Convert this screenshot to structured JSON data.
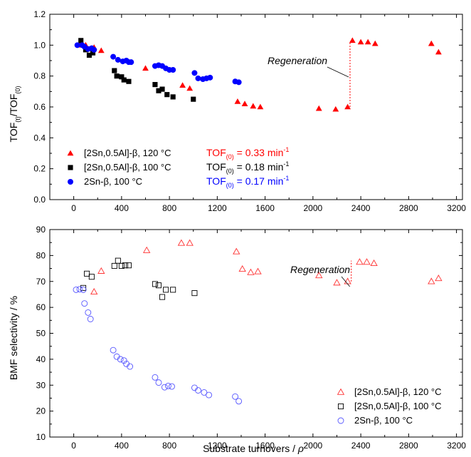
{
  "chart_data": [
    {
      "type": "scatter",
      "title": "",
      "xlabel": "",
      "ylabel": {
        "main": "TOF",
        "sub1": "(t)",
        "mid": "/TOF",
        "sub2": "(0)"
      },
      "xlim": [
        -200,
        3250
      ],
      "ylim": [
        0.0,
        1.2
      ],
      "xticks": [
        "0",
        "400",
        "800",
        "1200",
        "1600",
        "2000",
        "2400",
        "2800",
        "3200"
      ],
      "yticks": [
        "0.0",
        "0.2",
        "0.4",
        "0.6",
        "0.8",
        "1.0",
        "1.2"
      ],
      "grid": false,
      "legend_placement": "bottom-left",
      "series": [
        {
          "name": "[2Sn,0.5Al]-β, 120 °C",
          "marker": "triangle",
          "filled": true,
          "color": "#ff0000",
          "points": [
            [
              50,
              1.0
            ],
            [
              100,
              1.0
            ],
            [
              170,
              0.985
            ],
            [
              230,
              0.965
            ],
            [
              600,
              0.85
            ],
            [
              910,
              0.74
            ],
            [
              970,
              0.72
            ],
            [
              1370,
              0.635
            ],
            [
              1430,
              0.62
            ],
            [
              1500,
              0.605
            ],
            [
              1560,
              0.6
            ],
            [
              2050,
              0.59
            ],
            [
              2190,
              0.585
            ],
            [
              2290,
              0.6
            ],
            [
              2330,
              1.03
            ],
            [
              2400,
              1.02
            ],
            [
              2460,
              1.02
            ],
            [
              2520,
              1.01
            ],
            [
              2990,
              1.01
            ],
            [
              3050,
              0.955
            ]
          ]
        },
        {
          "name": "[2Sn,0.5Al]-β, 100 °C",
          "marker": "square",
          "filled": true,
          "color": "#000000",
          "points": [
            [
              60,
              1.03
            ],
            [
              100,
              0.97
            ],
            [
              130,
              0.935
            ],
            [
              160,
              0.95
            ],
            [
              340,
              0.835
            ],
            [
              360,
              0.8
            ],
            [
              400,
              0.795
            ],
            [
              420,
              0.775
            ],
            [
              460,
              0.765
            ],
            [
              680,
              0.745
            ],
            [
              710,
              0.705
            ],
            [
              740,
              0.715
            ],
            [
              780,
              0.68
            ],
            [
              830,
              0.665
            ],
            [
              1000,
              0.65
            ]
          ]
        },
        {
          "name": "2Sn-β, 100 °C",
          "marker": "circle",
          "filled": true,
          "color": "#0000ff",
          "points": [
            [
              30,
              1.0
            ],
            [
              70,
              1.0
            ],
            [
              90,
              0.99
            ],
            [
              120,
              0.975
            ],
            [
              150,
              0.98
            ],
            [
              170,
              0.97
            ],
            [
              330,
              0.925
            ],
            [
              370,
              0.905
            ],
            [
              410,
              0.895
            ],
            [
              440,
              0.9
            ],
            [
              460,
              0.89
            ],
            [
              480,
              0.89
            ],
            [
              680,
              0.865
            ],
            [
              710,
              0.87
            ],
            [
              740,
              0.865
            ],
            [
              770,
              0.85
            ],
            [
              800,
              0.84
            ],
            [
              830,
              0.84
            ],
            [
              1010,
              0.82
            ],
            [
              1040,
              0.785
            ],
            [
              1080,
              0.78
            ],
            [
              1110,
              0.785
            ],
            [
              1140,
              0.79
            ],
            [
              1350,
              0.765
            ],
            [
              1380,
              0.76
            ]
          ]
        }
      ],
      "tof_labels": [
        {
          "main": "TOF",
          "sub": "(0)",
          "value": " = 0.33 min",
          "sup": "-1",
          "color": "#ff0000"
        },
        {
          "main": "TOF",
          "sub": "(0)",
          "value": " = 0.18 min",
          "sup": "-1",
          "color": "#000000"
        },
        {
          "main": "TOF",
          "sub": "(0)",
          "value": " = 0.17 min",
          "sup": "-1",
          "color": "#0000ff"
        }
      ],
      "annotation": {
        "text": "Regeneration",
        "x": 2310,
        "y_from": 0.6,
        "y_to": 1.02
      }
    },
    {
      "type": "scatter",
      "title": "",
      "xlabel": {
        "main": "Substrate turnovers / ",
        "italic": "ρ"
      },
      "ylabel": "BMF selectivity / %",
      "xlim": [
        -200,
        3250
      ],
      "ylim": [
        10,
        90
      ],
      "xticks": [
        "0",
        "400",
        "800",
        "1200",
        "1600",
        "2000",
        "2400",
        "2800",
        "3200"
      ],
      "yticks": [
        "10",
        "20",
        "30",
        "40",
        "50",
        "60",
        "70",
        "80",
        "90"
      ],
      "grid": false,
      "legend_placement": "bottom-right",
      "series": [
        {
          "name": "[2Sn,0.5Al]-β, 120 °C",
          "marker": "triangle",
          "filled": false,
          "color": "#ff3333",
          "points": [
            [
              170,
              66
            ],
            [
              230,
              74
            ],
            [
              610,
              82
            ],
            [
              900,
              84.8
            ],
            [
              970,
              84.8
            ],
            [
              1360,
              81.5
            ],
            [
              1410,
              74.8
            ],
            [
              1480,
              73.5
            ],
            [
              1540,
              73.8
            ],
            [
              2050,
              72.3
            ],
            [
              2200,
              69.5
            ],
            [
              2290,
              70
            ],
            [
              2390,
              77.5
            ],
            [
              2450,
              77.5
            ],
            [
              2510,
              77
            ],
            [
              2990,
              70
            ],
            [
              3050,
              71.2
            ]
          ]
        },
        {
          "name": "[2Sn,0.5Al]-β, 100 °C",
          "marker": "square",
          "filled": false,
          "color": "#000000",
          "points": [
            [
              80,
              67.5
            ],
            [
              110,
              73
            ],
            [
              150,
              71.8
            ],
            [
              340,
              76
            ],
            [
              370,
              78
            ],
            [
              400,
              76
            ],
            [
              430,
              76.2
            ],
            [
              460,
              76.2
            ],
            [
              680,
              69
            ],
            [
              710,
              68.5
            ],
            [
              740,
              64
            ],
            [
              770,
              66.8
            ],
            [
              830,
              66.8
            ],
            [
              1010,
              65.5
            ]
          ]
        },
        {
          "name": "2Sn-β, 100 °C",
          "marker": "circle",
          "filled": false,
          "color": "#5555ff",
          "points": [
            [
              20,
              66.8
            ],
            [
              50,
              67
            ],
            [
              80,
              66.8
            ],
            [
              90,
              61.5
            ],
            [
              120,
              58
            ],
            [
              140,
              55.5
            ],
            [
              330,
              43.5
            ],
            [
              360,
              41
            ],
            [
              390,
              40
            ],
            [
              420,
              39.5
            ],
            [
              440,
              38.2
            ],
            [
              470,
              37.2
            ],
            [
              680,
              33
            ],
            [
              710,
              31
            ],
            [
              760,
              29.2
            ],
            [
              790,
              29.7
            ],
            [
              820,
              29.5
            ],
            [
              1010,
              29
            ],
            [
              1040,
              28
            ],
            [
              1090,
              27.2
            ],
            [
              1130,
              26.2
            ],
            [
              1350,
              25.6
            ],
            [
              1380,
              23.8
            ]
          ]
        }
      ],
      "annotation": {
        "text": "Regeneration",
        "x": 2320,
        "y_from": 70,
        "y_to": 78
      }
    }
  ]
}
